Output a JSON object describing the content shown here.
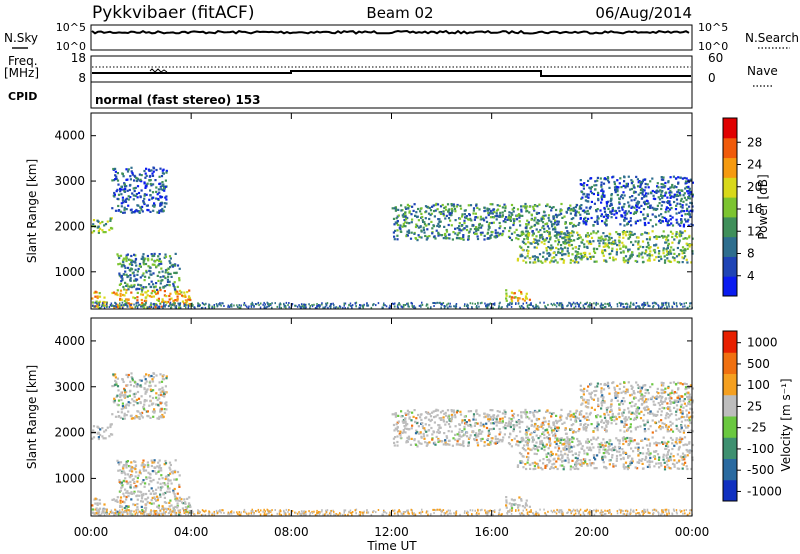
{
  "header": {
    "site": "Pykkvibaer (fitACF)",
    "beam": "Beam 02",
    "date": "06/Aug/2014"
  },
  "top_panels": {
    "nsky_label": "N.Sky",
    "nsky_ticks": [
      "10^5",
      "10^0"
    ],
    "nsearch_label": "N.Search",
    "nsearch_ticks": [
      "10^5",
      "10^0"
    ],
    "freq_label": "Freq.",
    "freq_unit": "[MHz]",
    "freq_ticks": [
      "18",
      "8"
    ],
    "nave_label": "Nave",
    "nave_ticks": [
      "60",
      "0"
    ],
    "cpid_label": "CPID",
    "cpid_text": "normal (fast stereo) 153"
  },
  "chart_data": [
    {
      "type": "heatmap",
      "name": "power",
      "ylabel": "Slant Range [km]",
      "ylim": [
        180,
        4500
      ],
      "yticks": [
        "1000",
        "2000",
        "3000",
        "4000"
      ],
      "xticks": [
        "00:00",
        "04:00",
        "08:00",
        "12:00",
        "16:00",
        "20:00",
        "00:00"
      ],
      "xlim_hours": [
        0,
        24
      ],
      "colorbar": {
        "label": "Power [dB]",
        "ticks": [
          "4",
          "8",
          "12",
          "16",
          "20",
          "24",
          "28"
        ],
        "colors": [
          "#0a1cf0",
          "#1f44b5",
          "#2e6e8e",
          "#3f8f5a",
          "#7cc430",
          "#d8d81a",
          "#f59a10",
          "#f05a0a",
          "#e00000"
        ]
      },
      "scatter_regions_hours_km": [
        {
          "t": [
            0.0,
            0.8
          ],
          "r": [
            1850,
            2200
          ],
          "level": 4
        },
        {
          "t": [
            0.8,
            3.0
          ],
          "r": [
            2300,
            3300
          ],
          "level": 2
        },
        {
          "t": [
            0.0,
            4.0
          ],
          "r": [
            200,
            600
          ],
          "level": 6
        },
        {
          "t": [
            1.0,
            3.5
          ],
          "r": [
            600,
            1400
          ],
          "level": 3
        },
        {
          "t": [
            12.0,
            19.5
          ],
          "r": [
            1700,
            2500
          ],
          "level": 3
        },
        {
          "t": [
            17.0,
            24.0
          ],
          "r": [
            1200,
            1900
          ],
          "level": 4
        },
        {
          "t": [
            19.5,
            24.0
          ],
          "r": [
            2000,
            3100
          ],
          "level": 2
        },
        {
          "t": [
            16.5,
            17.5
          ],
          "r": [
            350,
            600
          ],
          "level": 6
        }
      ]
    },
    {
      "type": "heatmap",
      "name": "velocity",
      "ylabel": "Slant Range [km]",
      "ylim": [
        180,
        4500
      ],
      "yticks": [
        "1000",
        "2000",
        "3000",
        "4000"
      ],
      "xticks": [
        "00:00",
        "04:00",
        "08:00",
        "12:00",
        "16:00",
        "20:00",
        "00:00"
      ],
      "xlabel": "Time UT",
      "xlim_hours": [
        0,
        24
      ],
      "colorbar": {
        "label": "Velocity [m s⁻¹]",
        "ticks": [
          "1000",
          "500",
          "100",
          "25",
          "-25",
          "-100",
          "-500",
          "-1000"
        ],
        "colors": [
          "#1030c0",
          "#2a6aa0",
          "#3e9070",
          "#6ac840",
          "#bdbdbd",
          "#f5a020",
          "#f07010",
          "#e82000"
        ]
      }
    }
  ]
}
